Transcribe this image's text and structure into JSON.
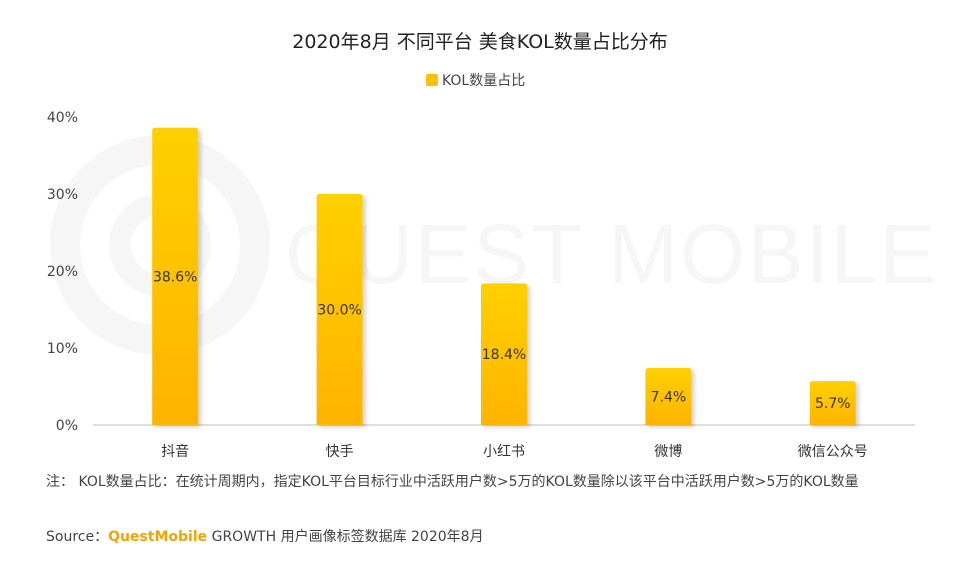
{
  "chart_data": {
    "type": "bar",
    "title": "2020年8月 不同平台 美食KOL数量占比分布",
    "legend": "KOL数量占比",
    "categories": [
      "抖音",
      "快手",
      "小红书",
      "微博",
      "微信公众号"
    ],
    "series": [
      {
        "name": "KOL数量占比",
        "values": [
          38.6,
          30.0,
          18.4,
          7.4,
          5.7
        ]
      }
    ],
    "data_labels": [
      "38.6%",
      "30.0%",
      "18.4%",
      "7.4%",
      "5.7%"
    ],
    "y_ticks": [
      "0%",
      "10%",
      "20%",
      "30%",
      "40%"
    ],
    "ylim": [
      0,
      40
    ],
    "grid": false,
    "legend_position": "top-center"
  },
  "watermark": "QUEST MOBILE",
  "note": "注： KOL数量占比：在统计周期内，指定KOL平台目标行业中活跃用户数>5万的KOL数量除以该平台中活跃用户数>5万的KOL数量",
  "source": {
    "prefix": "Source：",
    "brand": "QuestMobile",
    "rest": "GROWTH 用户画像标签数据库 2020年8月"
  },
  "colors": {
    "bar_top": "#FFD000",
    "bar_bottom": "#FFB400",
    "legend": "#FFC000",
    "axis": "#bfbfbf"
  }
}
